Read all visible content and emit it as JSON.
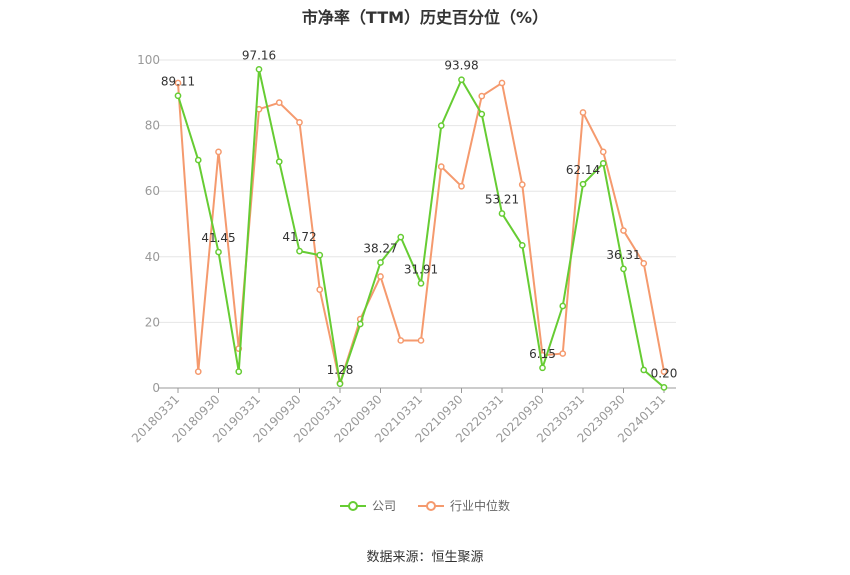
{
  "chart_data": {
    "type": "line",
    "title": "市净率（TTM）历史百分位（%）",
    "xlabel": "",
    "ylabel": "",
    "ylim": [
      0,
      100
    ],
    "yticks": [
      0,
      20,
      40,
      60,
      80,
      100
    ],
    "grid": true,
    "legend_position": "bottom",
    "x": [
      "20180331",
      "20180630",
      "20180930",
      "20181231",
      "20190331",
      "20190630",
      "20190930",
      "20191231",
      "20200331",
      "20200630",
      "20200930",
      "20201231",
      "20210331",
      "20210630",
      "20210930",
      "20211231",
      "20220331",
      "20220630",
      "20220930",
      "20221231",
      "20230331",
      "20230630",
      "20230930",
      "20231231",
      "20240131"
    ],
    "xtick_labels": [
      "20180331",
      "20180930",
      "20190331",
      "20190930",
      "20200331",
      "20200930",
      "20210331",
      "20210930",
      "20220331",
      "20220930",
      "20230331",
      "20230930",
      "20240131"
    ],
    "series": [
      {
        "name": "公司",
        "color": "#66cc33",
        "values": [
          89.11,
          69.5,
          41.45,
          5.0,
          97.16,
          69.0,
          41.72,
          40.5,
          1.28,
          19.5,
          38.27,
          46.0,
          31.91,
          80.0,
          93.98,
          83.5,
          53.21,
          43.5,
          6.15,
          25.0,
          62.14,
          68.5,
          36.31,
          5.5,
          0.2
        ],
        "data_labels": {
          "0": "89.11",
          "2": "41.45",
          "4": "97.16",
          "6": "41.72",
          "8": "1.28",
          "10": "38.27",
          "12": "31.91",
          "14": "93.98",
          "16": "53.21",
          "18": "6.15",
          "20": "62.14",
          "22": "36.31",
          "24": "0.20"
        }
      },
      {
        "name": "行业中位数",
        "color": "#f59a6e",
        "values": [
          93.0,
          5.0,
          72.0,
          12.0,
          85.0,
          87.0,
          81.0,
          30.0,
          1.5,
          21.0,
          34.0,
          14.5,
          14.5,
          67.5,
          61.5,
          89.0,
          93.0,
          62.0,
          10.0,
          10.5,
          84.0,
          72.0,
          48.0,
          38.0,
          5.0
        ]
      }
    ]
  },
  "source_text": "数据来源：恒生聚源"
}
